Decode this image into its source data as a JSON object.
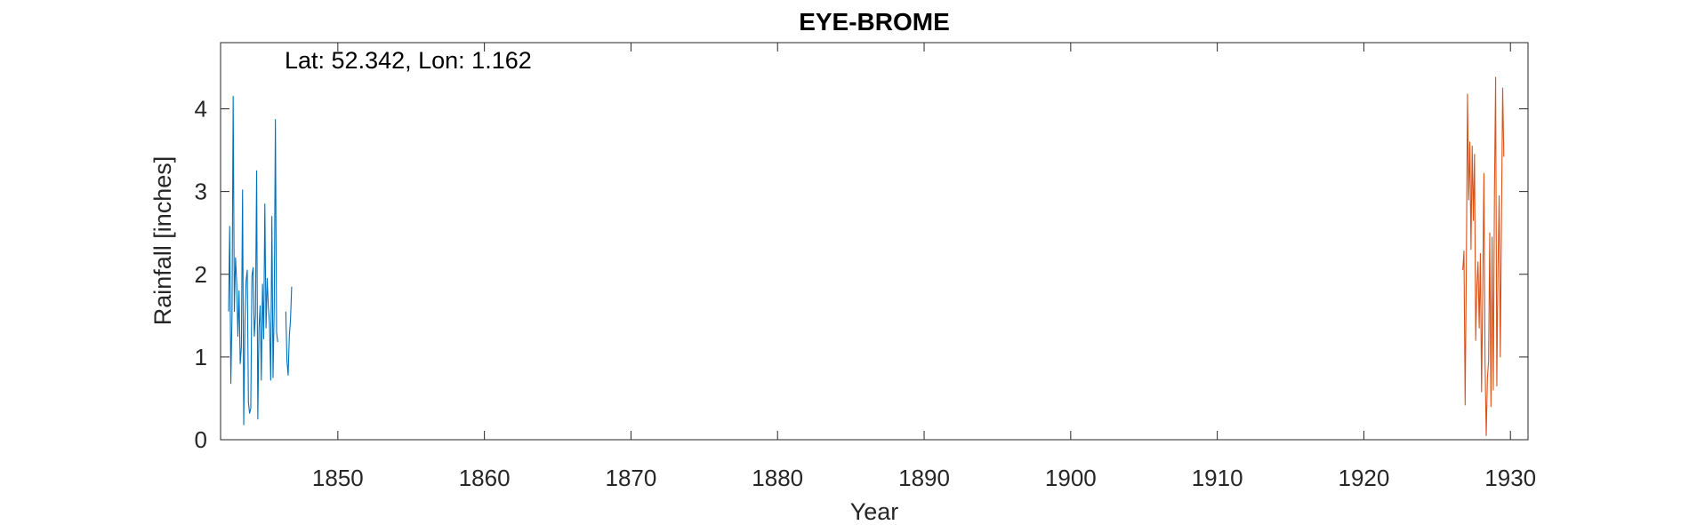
{
  "chart_data": {
    "type": "line",
    "title": "EYE-BROME",
    "xlabel": "Year",
    "ylabel": "Rainfall [inches]",
    "annotation": "Lat: 52.342, Lon: 1.162",
    "xlim": [
      1842,
      1931.2
    ],
    "ylim": [
      0,
      4.8
    ],
    "xticks": [
      1850,
      1860,
      1870,
      1880,
      1890,
      1900,
      1910,
      1920,
      1930
    ],
    "yticks": [
      0,
      1,
      2,
      3,
      4
    ],
    "grid": false,
    "series": [
      {
        "color": "#0072BD",
        "segments": [
          [
            [
              1842.55,
              1.55
            ],
            [
              1842.62,
              2.58
            ],
            [
              1842.7,
              0.68
            ],
            [
              1842.78,
              1.5
            ],
            [
              1842.86,
              4.15
            ],
            [
              1842.94,
              1.55
            ],
            [
              1843.02,
              2.2
            ],
            [
              1843.1,
              1.9
            ],
            [
              1843.18,
              1.25
            ],
            [
              1843.26,
              1.8
            ],
            [
              1843.34,
              0.92
            ],
            [
              1843.42,
              1.12
            ],
            [
              1843.5,
              3.02
            ],
            [
              1843.58,
              0.18
            ],
            [
              1843.66,
              1.4
            ],
            [
              1843.74,
              1.92
            ],
            [
              1843.82,
              2.05
            ],
            [
              1843.9,
              0.45
            ],
            [
              1843.98,
              0.32
            ],
            [
              1844.06,
              0.38
            ],
            [
              1844.14,
              1.98
            ],
            [
              1844.22,
              2.08
            ],
            [
              1844.3,
              1.25
            ],
            [
              1844.38,
              1.5
            ],
            [
              1844.46,
              3.25
            ],
            [
              1844.54,
              0.25
            ],
            [
              1844.62,
              1.35
            ],
            [
              1844.7,
              1.62
            ],
            [
              1844.78,
              0.72
            ],
            [
              1844.86,
              1.88
            ],
            [
              1844.94,
              1.22
            ],
            [
              1845.02,
              2.85
            ],
            [
              1845.1,
              1.35
            ],
            [
              1845.18,
              1.95
            ],
            [
              1845.26,
              1.6
            ],
            [
              1845.34,
              1.4
            ],
            [
              1845.42,
              0.72
            ],
            [
              1845.5,
              2.7
            ],
            [
              1845.58,
              0.75
            ],
            [
              1845.66,
              1.62
            ],
            [
              1845.74,
              3.87
            ],
            [
              1845.82,
              1.3
            ],
            [
              1845.9,
              1.18
            ]
          ],
          [
            [
              1846.45,
              1.55
            ],
            [
              1846.53,
              0.95
            ],
            [
              1846.61,
              0.78
            ],
            [
              1846.69,
              1.25
            ],
            [
              1846.77,
              1.45
            ],
            [
              1846.85,
              1.85
            ]
          ]
        ]
      },
      {
        "color": "#D95319",
        "segments": [
          [
            [
              1926.75,
              2.05
            ],
            [
              1926.83,
              2.28
            ],
            [
              1926.91,
              0.42
            ],
            [
              1926.99,
              2.05
            ],
            [
              1927.07,
              4.18
            ],
            [
              1927.15,
              2.9
            ],
            [
              1927.23,
              3.6
            ],
            [
              1927.31,
              2.3
            ],
            [
              1927.39,
              3.55
            ],
            [
              1927.47,
              2.65
            ],
            [
              1927.55,
              3.45
            ],
            [
              1927.63,
              1.2
            ],
            [
              1927.71,
              1.85
            ],
            [
              1927.79,
              2.15
            ],
            [
              1927.87,
              1.35
            ],
            [
              1927.95,
              2.25
            ],
            [
              1928.03,
              0.58
            ],
            [
              1928.11,
              1.8
            ],
            [
              1928.19,
              3.22
            ],
            [
              1928.27,
              0.92
            ],
            [
              1928.35,
              0.05
            ],
            [
              1928.43,
              0.75
            ],
            [
              1928.51,
              0.95
            ],
            [
              1928.59,
              2.5
            ],
            [
              1928.67,
              0.4
            ],
            [
              1928.75,
              2.45
            ],
            [
              1928.83,
              0.6
            ],
            [
              1928.91,
              2.98
            ],
            [
              1928.99,
              4.38
            ],
            [
              1929.07,
              0.65
            ],
            [
              1929.15,
              2.05
            ],
            [
              1929.23,
              2.95
            ],
            [
              1929.31,
              1.0
            ],
            [
              1929.39,
              2.7
            ],
            [
              1929.47,
              4.25
            ],
            [
              1929.55,
              3.42
            ]
          ]
        ]
      }
    ]
  }
}
